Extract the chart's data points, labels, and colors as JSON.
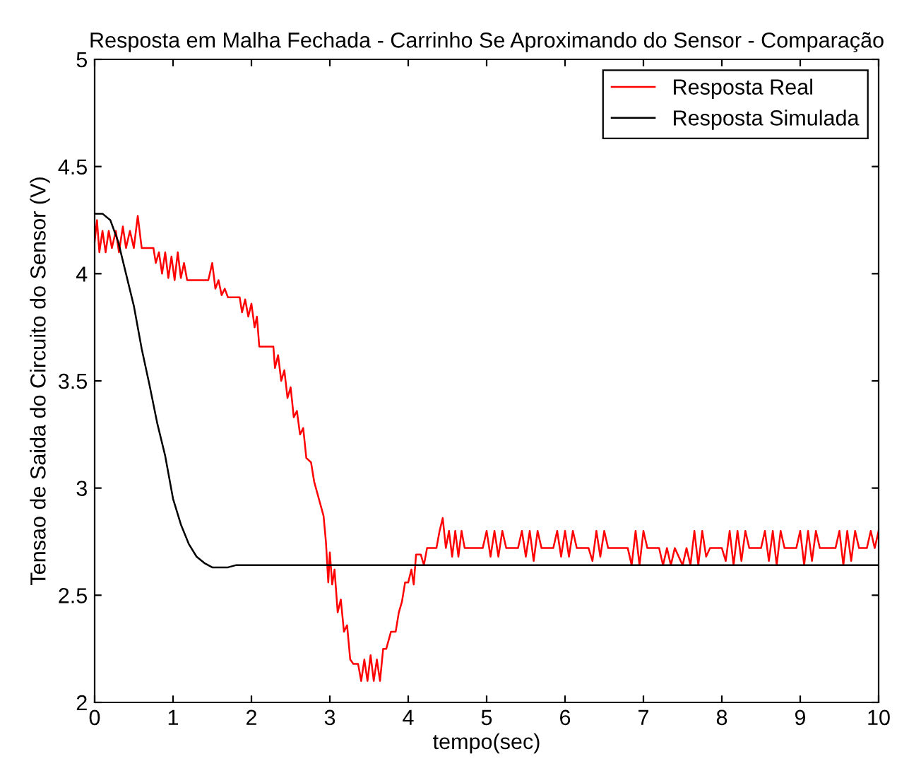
{
  "chart_data": {
    "type": "line",
    "title": "Resposta em Malha Fechada - Carrinho Se Aproximando do Sensor - Comparação",
    "xlabel": "tempo(sec)",
    "ylabel": "Tensao de Saida do Circuito do Sensor (V)",
    "xlim": [
      0,
      10
    ],
    "ylim": [
      2,
      5
    ],
    "xticks": [
      0,
      1,
      2,
      3,
      4,
      5,
      6,
      7,
      8,
      9,
      10
    ],
    "yticks": [
      2,
      2.5,
      3,
      3.5,
      4,
      4.5,
      5
    ],
    "grid": false,
    "legend": "top right",
    "line_style": "solid",
    "marker": "none",
    "series": [
      {
        "name": "Resposta Real",
        "color": "#ff0000",
        "x": [
          0,
          0.03,
          0.06,
          0.1,
          0.14,
          0.18,
          0.22,
          0.27,
          0.31,
          0.36,
          0.4,
          0.45,
          0.5,
          0.55,
          0.6,
          0.75,
          0.78,
          0.82,
          0.86,
          0.9,
          0.94,
          0.98,
          1.02,
          1.06,
          1.1,
          1.14,
          1.18,
          1.45,
          1.5,
          1.54,
          1.58,
          1.62,
          1.66,
          1.7,
          1.85,
          1.88,
          1.92,
          1.96,
          2.0,
          2.04,
          2.07,
          2.1,
          2.28,
          2.3,
          2.34,
          2.38,
          2.42,
          2.46,
          2.5,
          2.54,
          2.58,
          2.62,
          2.66,
          2.7,
          2.76,
          2.8,
          2.86,
          2.92,
          2.95,
          2.98,
          3.0,
          3.03,
          3.06,
          3.1,
          3.14,
          3.18,
          3.22,
          3.26,
          3.3,
          3.36,
          3.4,
          3.44,
          3.48,
          3.52,
          3.56,
          3.6,
          3.64,
          3.68,
          3.72,
          3.78,
          3.84,
          3.88,
          3.92,
          3.96,
          4.0,
          4.04,
          4.07,
          4.1,
          4.16,
          4.2,
          4.24,
          4.36,
          4.4,
          4.44,
          4.48,
          4.52,
          4.56,
          4.6,
          4.64,
          4.68,
          4.72,
          4.95,
          5.0,
          5.05,
          5.1,
          5.15,
          5.2,
          5.25,
          5.4,
          5.45,
          5.5,
          5.55,
          5.6,
          5.65,
          5.7,
          5.85,
          5.9,
          5.95,
          6.0,
          6.05,
          6.1,
          6.15,
          6.3,
          6.35,
          6.4,
          6.45,
          6.5,
          6.55,
          6.8,
          6.85,
          6.9,
          6.95,
          7.0,
          7.05,
          7.2,
          7.25,
          7.3,
          7.35,
          7.4,
          7.5,
          7.55,
          7.6,
          7.65,
          7.7,
          7.75,
          7.8,
          7.85,
          8.0,
          8.05,
          8.1,
          8.15,
          8.2,
          8.25,
          8.3,
          8.35,
          8.5,
          8.55,
          8.6,
          8.65,
          8.7,
          8.75,
          8.8,
          8.95,
          9.0,
          9.05,
          9.1,
          9.15,
          9.2,
          9.25,
          9.45,
          9.5,
          9.55,
          9.6,
          9.65,
          9.7,
          9.75,
          9.85,
          9.9,
          9.95,
          10
        ],
        "values": [
          4.15,
          4.25,
          4.1,
          4.2,
          4.1,
          4.2,
          4.12,
          4.2,
          4.1,
          4.22,
          4.12,
          4.2,
          4.12,
          4.27,
          4.12,
          4.12,
          4.05,
          4.1,
          4.0,
          4.1,
          3.98,
          4.08,
          3.97,
          4.1,
          3.98,
          4.05,
          3.97,
          3.97,
          4.05,
          3.93,
          3.97,
          3.9,
          3.93,
          3.89,
          3.89,
          3.82,
          3.88,
          3.8,
          3.86,
          3.75,
          3.8,
          3.66,
          3.66,
          3.56,
          3.62,
          3.5,
          3.55,
          3.42,
          3.47,
          3.33,
          3.36,
          3.25,
          3.28,
          3.14,
          3.12,
          3.03,
          2.95,
          2.87,
          2.75,
          2.56,
          2.7,
          2.55,
          2.62,
          2.42,
          2.48,
          2.33,
          2.36,
          2.2,
          2.18,
          2.18,
          2.1,
          2.2,
          2.1,
          2.22,
          2.1,
          2.2,
          2.1,
          2.25,
          2.25,
          2.33,
          2.33,
          2.42,
          2.47,
          2.56,
          2.56,
          2.62,
          2.55,
          2.69,
          2.69,
          2.64,
          2.72,
          2.72,
          2.8,
          2.86,
          2.72,
          2.8,
          2.68,
          2.8,
          2.68,
          2.8,
          2.72,
          2.72,
          2.8,
          2.68,
          2.8,
          2.68,
          2.8,
          2.72,
          2.72,
          2.8,
          2.68,
          2.8,
          2.66,
          2.8,
          2.72,
          2.72,
          2.8,
          2.68,
          2.8,
          2.68,
          2.8,
          2.72,
          2.72,
          2.66,
          2.8,
          2.68,
          2.8,
          2.72,
          2.72,
          2.64,
          2.8,
          2.64,
          2.8,
          2.72,
          2.72,
          2.64,
          2.72,
          2.64,
          2.72,
          2.64,
          2.72,
          2.64,
          2.8,
          2.64,
          2.8,
          2.68,
          2.72,
          2.72,
          2.66,
          2.8,
          2.64,
          2.8,
          2.66,
          2.8,
          2.72,
          2.72,
          2.8,
          2.66,
          2.8,
          2.64,
          2.8,
          2.72,
          2.72,
          2.8,
          2.64,
          2.8,
          2.66,
          2.8,
          2.72,
          2.72,
          2.8,
          2.64,
          2.8,
          2.66,
          2.8,
          2.72,
          2.72,
          2.8,
          2.72,
          2.8
        ]
      },
      {
        "name": "Resposta Simulada",
        "color": "#000000",
        "x": [
          0,
          0.1,
          0.2,
          0.3,
          0.4,
          0.5,
          0.6,
          0.7,
          0.8,
          0.9,
          1.0,
          1.1,
          1.2,
          1.3,
          1.4,
          1.5,
          1.7,
          1.8,
          10
        ],
        "values": [
          4.28,
          4.28,
          4.25,
          4.15,
          4.0,
          3.85,
          3.65,
          3.48,
          3.3,
          3.15,
          2.95,
          2.83,
          2.74,
          2.68,
          2.65,
          2.63,
          2.63,
          2.64,
          2.64
        ]
      }
    ]
  }
}
